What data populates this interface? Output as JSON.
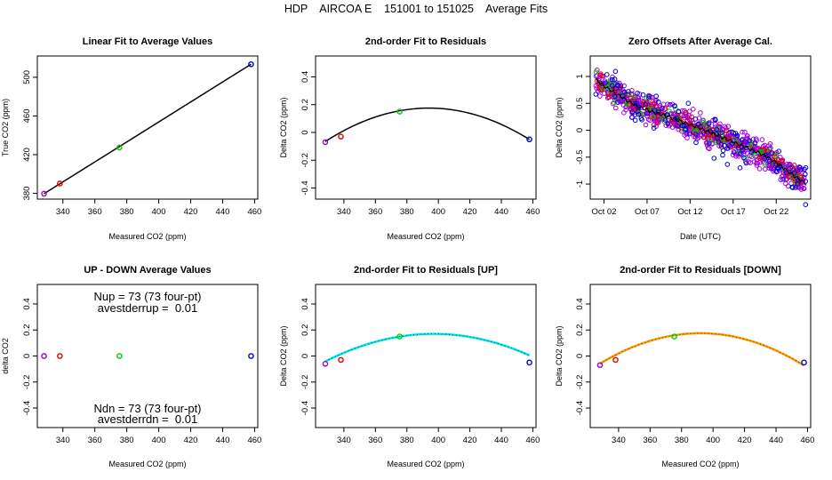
{
  "page_title": "HDP    AIRCOA E    151001 to 151025    Average Fits",
  "chart_data": [
    {
      "id": "p1",
      "type": "scatter",
      "title": "Linear Fit to Average Values",
      "xlabel": "Measured CO2 (ppm)",
      "ylabel": "True CO2 (ppm)",
      "xlim": [
        324,
        462
      ],
      "ylim": [
        374,
        522
      ],
      "xticks": [
        340,
        360,
        380,
        400,
        420,
        440,
        460
      ],
      "yticks": [
        380,
        420,
        460,
        500
      ],
      "points": [
        {
          "x": 328.2,
          "y": 379.6,
          "color": "#9900cc"
        },
        {
          "x": 338.1,
          "y": 390.1,
          "color": "#e00000"
        },
        {
          "x": 375.4,
          "y": 427.4,
          "color": "#00cc00"
        },
        {
          "x": 457.8,
          "y": 513.5,
          "color": "#0000cc"
        }
      ],
      "line": {
        "color": "#000000",
        "x": [
          328.2,
          457.8
        ],
        "y": [
          379.6,
          513.5
        ]
      }
    },
    {
      "id": "p2",
      "type": "scatter",
      "title": "2nd-order Fit to Residuals",
      "xlabel": "Measured CO2 (ppm)",
      "ylabel": "Delta CO2 (ppm)",
      "xlim": [
        322,
        462
      ],
      "ylim": [
        -0.48,
        0.55
      ],
      "xticks": [
        340,
        360,
        380,
        400,
        420,
        440,
        460
      ],
      "yticks": [
        -0.4,
        -0.2,
        0.0,
        0.2,
        0.4
      ],
      "points": [
        {
          "x": 328.2,
          "y": -0.07,
          "color": "#9900cc"
        },
        {
          "x": 338.1,
          "y": -0.03,
          "color": "#e00000"
        },
        {
          "x": 375.4,
          "y": 0.15,
          "color": "#00cc00"
        },
        {
          "x": 457.8,
          "y": -0.05,
          "color": "#0000cc"
        }
      ],
      "curve": {
        "color": "#000000",
        "x_from": 328.2,
        "x_to": 457.8,
        "vertex_x": 394,
        "vertex_y": 0.175,
        "a": -5.55e-05
      }
    },
    {
      "id": "p3",
      "type": "scatter",
      "title": "Zero Offsets After Average Cal.",
      "xlabel": "Date (UTC)",
      "ylabel": "Delta CO2 (ppm)",
      "xlim": [
        0.4,
        26.0
      ],
      "ylim": [
        -1.28,
        1.38
      ],
      "xticks": [
        {
          "v": 2,
          "label": "Oct 02"
        },
        {
          "v": 7,
          "label": "Oct 07"
        },
        {
          "v": 12,
          "label": "Oct 12"
        },
        {
          "v": 17,
          "label": "Oct 17"
        },
        {
          "v": 22,
          "label": "Oct 22"
        }
      ],
      "yticks": [
        -1.0,
        -0.5,
        0.0,
        0.5,
        1.0
      ],
      "trend": [
        [
          1.0,
          0.95
        ],
        [
          2.0,
          0.82
        ],
        [
          3.0,
          0.72
        ],
        [
          4.0,
          0.62
        ],
        [
          5.0,
          0.52
        ],
        [
          6.0,
          0.44
        ],
        [
          7.0,
          0.38
        ],
        [
          8.0,
          0.32
        ],
        [
          9.0,
          0.28
        ],
        [
          10.0,
          0.22
        ],
        [
          11.0,
          0.16
        ],
        [
          12.0,
          0.1
        ],
        [
          13.0,
          0.05
        ],
        [
          14.0,
          -0.02
        ],
        [
          15.0,
          -0.08
        ],
        [
          16.0,
          -0.15
        ],
        [
          17.0,
          -0.22
        ],
        [
          18.0,
          -0.28
        ],
        [
          19.0,
          -0.35
        ],
        [
          20.0,
          -0.42
        ],
        [
          21.0,
          -0.5
        ],
        [
          22.0,
          -0.6
        ],
        [
          23.0,
          -0.72
        ],
        [
          24.0,
          -0.84
        ],
        [
          25.5,
          -1.0
        ]
      ],
      "series": [
        {
          "name": "purple",
          "color": "#a000d8",
          "n": 650,
          "spread": 0.12
        },
        {
          "name": "red",
          "color": "#e00000",
          "n": 120,
          "spread": 0.1
        },
        {
          "name": "green",
          "color": "#00c000",
          "n": 70,
          "spread": 0.1
        },
        {
          "name": "blue",
          "color": "#0000d8",
          "n": 130,
          "spread": 0.16
        }
      ],
      "trend_color": "#000000"
    },
    {
      "id": "p4",
      "type": "scatter",
      "title": "UP - DOWN Average Values",
      "xlabel": "Measured CO2 (ppm)",
      "ylabel": "delta CO2",
      "xlim": [
        324,
        462
      ],
      "ylim": [
        -0.55,
        0.55
      ],
      "xticks": [
        340,
        360,
        380,
        400,
        420,
        440,
        460
      ],
      "yticks": [
        -0.4,
        -0.2,
        0.0,
        0.2,
        0.4
      ],
      "points": [
        {
          "x": 328.2,
          "y": 0.0,
          "color": "#9900cc"
        },
        {
          "x": 338.1,
          "y": 0.0,
          "color": "#e00000"
        },
        {
          "x": 375.4,
          "y": 0.0,
          "color": "#00cc00"
        },
        {
          "x": 457.8,
          "y": 0.0,
          "color": "#0000cc"
        }
      ],
      "annotations": {
        "nup": "Nup = 73 (73 four-pt)",
        "avestderrup": "avestderrup =  0.01",
        "ndn": "Ndn = 73 (73 four-pt)",
        "avestderrdn": "avestderrdn =  0.01"
      }
    },
    {
      "id": "p5",
      "type": "scatter",
      "title": "2nd-order Fit to Residuals [UP]",
      "xlabel": "Measured CO2 (ppm)",
      "ylabel": "Delta CO2 (ppm)",
      "xlim": [
        322,
        462
      ],
      "ylim": [
        -0.55,
        0.55
      ],
      "xticks": [
        340,
        360,
        380,
        400,
        420,
        440,
        460
      ],
      "yticks": [
        -0.4,
        -0.2,
        0.0,
        0.2,
        0.4
      ],
      "points": [
        {
          "x": 328.2,
          "y": -0.06,
          "color": "#9900cc"
        },
        {
          "x": 338.1,
          "y": -0.03,
          "color": "#e00000"
        },
        {
          "x": 375.4,
          "y": 0.15,
          "color": "#00cc00"
        },
        {
          "x": 457.8,
          "y": -0.05,
          "color": "#0000cc"
        }
      ],
      "curve": {
        "color": "#00e5e5",
        "x_from": 328.2,
        "x_to": 457.8,
        "vertex_x": 397,
        "vertex_y": 0.17,
        "a": -4.47e-05
      }
    },
    {
      "id": "p6",
      "type": "scatter",
      "title": "2nd-order Fit to Residuals [DOWN]",
      "xlabel": "Measured CO2 (ppm)",
      "ylabel": "Delta CO2 (ppm)",
      "xlim": [
        322,
        462
      ],
      "ylim": [
        -0.55,
        0.55
      ],
      "xticks": [
        340,
        360,
        380,
        400,
        420,
        440,
        460
      ],
      "yticks": [
        -0.4,
        -0.2,
        0.0,
        0.2,
        0.4
      ],
      "points": [
        {
          "x": 328.2,
          "y": -0.07,
          "color": "#9900cc"
        },
        {
          "x": 338.1,
          "y": -0.03,
          "color": "#e00000"
        },
        {
          "x": 375.4,
          "y": 0.15,
          "color": "#00cc00"
        },
        {
          "x": 457.8,
          "y": -0.05,
          "color": "#0000cc"
        }
      ],
      "curve": {
        "color": "#ff9900",
        "x_from": 328.2,
        "x_to": 457.8,
        "vertex_x": 392,
        "vertex_y": 0.175,
        "a": -5.75e-05
      }
    }
  ]
}
